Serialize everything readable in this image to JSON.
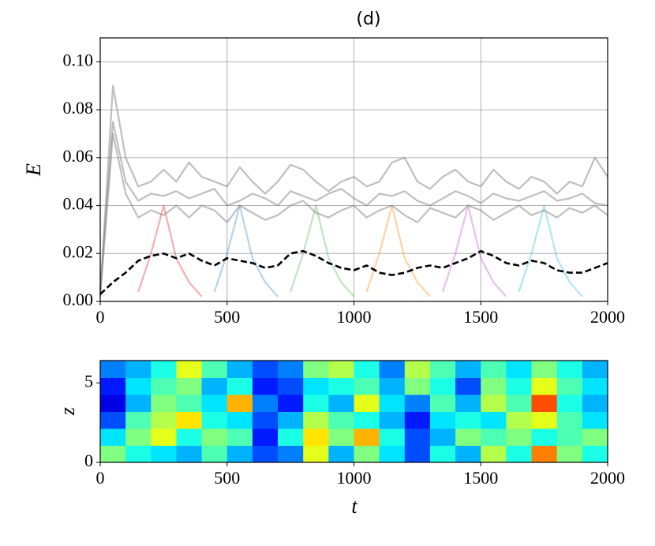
{
  "chart_data": [
    {
      "type": "line",
      "title": "(d)",
      "ylabel": "E",
      "xlim": [
        0,
        2000
      ],
      "ylim": [
        0,
        0.11
      ],
      "xticks": [
        0,
        500,
        1000,
        1500,
        2000
      ],
      "yticks": [
        {
          "value": 0,
          "label": "0.00"
        },
        {
          "value": 0.02,
          "label": "0.02"
        },
        {
          "value": 0.04,
          "label": "0.04"
        },
        {
          "value": 0.06,
          "label": "0.06"
        },
        {
          "value": 0.08,
          "label": "0.08"
        },
        {
          "value": 0.1,
          "label": "0.10"
        }
      ],
      "grid": true,
      "x": [
        0,
        50,
        100,
        150,
        200,
        250,
        300,
        350,
        400,
        450,
        500,
        550,
        600,
        650,
        700,
        750,
        800,
        850,
        900,
        950,
        1000,
        1050,
        1100,
        1150,
        1200,
        1250,
        1300,
        1350,
        1400,
        1450,
        1500,
        1550,
        1600,
        1650,
        1700,
        1750,
        1800,
        1850,
        1900,
        1950,
        2000
      ],
      "series": [
        {
          "color": "#e41a1c",
          "opacity": 0.35,
          "values": [
            null,
            null,
            null,
            0.004,
            0.02,
            0.04,
            0.018,
            0.008,
            0.002,
            null,
            null,
            null,
            null,
            null,
            null,
            null,
            null,
            null,
            null,
            null,
            null,
            null,
            null,
            null,
            null,
            null,
            null,
            null,
            null,
            null,
            null,
            null,
            null,
            null,
            null,
            null,
            null,
            null,
            null,
            null,
            null
          ]
        },
        {
          "color": "#377eb8",
          "opacity": 0.35,
          "values": [
            null,
            null,
            null,
            null,
            null,
            null,
            null,
            null,
            null,
            0.004,
            0.02,
            0.04,
            0.018,
            0.008,
            0.002,
            null,
            null,
            null,
            null,
            null,
            null,
            null,
            null,
            null,
            null,
            null,
            null,
            null,
            null,
            null,
            null,
            null,
            null,
            null,
            null,
            null,
            null,
            null,
            null,
            null,
            null
          ]
        },
        {
          "color": "#4daf4a",
          "opacity": 0.35,
          "values": [
            null,
            null,
            null,
            null,
            null,
            null,
            null,
            null,
            null,
            null,
            null,
            null,
            null,
            null,
            null,
            0.004,
            0.02,
            0.04,
            0.018,
            0.008,
            0.002,
            null,
            null,
            null,
            null,
            null,
            null,
            null,
            null,
            null,
            null,
            null,
            null,
            null,
            null,
            null,
            null,
            null,
            null,
            null,
            null
          ]
        },
        {
          "color": "#ff7f00",
          "opacity": 0.35,
          "values": [
            null,
            null,
            null,
            null,
            null,
            null,
            null,
            null,
            null,
            null,
            null,
            null,
            null,
            null,
            null,
            null,
            null,
            null,
            null,
            null,
            null,
            0.004,
            0.02,
            0.04,
            0.018,
            0.008,
            0.002,
            null,
            null,
            null,
            null,
            null,
            null,
            null,
            null,
            null,
            null,
            null,
            null,
            null,
            null
          ]
        },
        {
          "color": "#c04bd0",
          "opacity": 0.35,
          "values": [
            null,
            null,
            null,
            null,
            null,
            null,
            null,
            null,
            null,
            null,
            null,
            null,
            null,
            null,
            null,
            null,
            null,
            null,
            null,
            null,
            null,
            null,
            null,
            null,
            null,
            null,
            null,
            0.004,
            0.02,
            0.04,
            0.018,
            0.008,
            0.002,
            null,
            null,
            null,
            null,
            null,
            null,
            null,
            null
          ]
        },
        {
          "color": "#17becf",
          "opacity": 0.35,
          "values": [
            null,
            null,
            null,
            null,
            null,
            null,
            null,
            null,
            null,
            null,
            null,
            null,
            null,
            null,
            null,
            null,
            null,
            null,
            null,
            null,
            null,
            null,
            null,
            null,
            null,
            null,
            null,
            null,
            null,
            null,
            null,
            null,
            null,
            0.004,
            0.02,
            0.04,
            0.018,
            0.008,
            0.002,
            null,
            null
          ]
        },
        {
          "color": "#808080",
          "opacity": 0.5,
          "values": [
            0.005,
            0.075,
            0.05,
            0.042,
            0.045,
            0.044,
            0.046,
            0.043,
            0.045,
            0.047,
            0.04,
            0.042,
            0.045,
            0.043,
            0.04,
            0.046,
            0.044,
            0.042,
            0.045,
            0.047,
            0.043,
            0.04,
            0.045,
            0.044,
            0.046,
            0.042,
            0.04,
            0.043,
            0.046,
            0.044,
            0.041,
            0.045,
            0.043,
            0.042,
            0.044,
            0.046,
            0.042,
            0.043,
            0.045,
            0.041,
            0.04
          ]
        },
        {
          "color": "#808080",
          "opacity": 0.5,
          "values": [
            0.003,
            0.09,
            0.06,
            0.048,
            0.05,
            0.055,
            0.05,
            0.058,
            0.052,
            0.05,
            0.048,
            0.056,
            0.05,
            0.045,
            0.05,
            0.057,
            0.055,
            0.05,
            0.046,
            0.05,
            0.052,
            0.048,
            0.05,
            0.058,
            0.06,
            0.05,
            0.047,
            0.052,
            0.055,
            0.05,
            0.048,
            0.055,
            0.05,
            0.047,
            0.052,
            0.05,
            0.045,
            0.05,
            0.048,
            0.06,
            0.052
          ]
        },
        {
          "color": "#808080",
          "opacity": 0.5,
          "values": [
            0.002,
            0.07,
            0.045,
            0.035,
            0.038,
            0.036,
            0.04,
            0.035,
            0.04,
            0.038,
            0.033,
            0.04,
            0.037,
            0.034,
            0.036,
            0.04,
            0.042,
            0.037,
            0.035,
            0.038,
            0.04,
            0.035,
            0.038,
            0.04,
            0.036,
            0.033,
            0.039,
            0.037,
            0.035,
            0.04,
            0.038,
            0.034,
            0.037,
            0.04,
            0.036,
            0.038,
            0.035,
            0.039,
            0.037,
            0.04,
            0.036
          ]
        },
        {
          "color": "#000000",
          "opacity": 1,
          "dash": true,
          "values": [
            0.003,
            0.008,
            0.012,
            0.017,
            0.019,
            0.02,
            0.018,
            0.02,
            0.017,
            0.015,
            0.018,
            0.017,
            0.016,
            0.014,
            0.015,
            0.02,
            0.021,
            0.019,
            0.016,
            0.014,
            0.013,
            0.015,
            0.012,
            0.011,
            0.012,
            0.014,
            0.015,
            0.014,
            0.016,
            0.018,
            0.021,
            0.019,
            0.016,
            0.015,
            0.017,
            0.016,
            0.013,
            0.012,
            0.012,
            0.014,
            0.016
          ]
        }
      ]
    },
    {
      "type": "heatmap",
      "xlabel": "t",
      "ylabel": "z",
      "xlim": [
        0,
        2000
      ],
      "ylim": [
        0,
        6.4
      ],
      "xticks": [
        0,
        500,
        1000,
        1500,
        2000
      ],
      "yticks": [
        0,
        5
      ],
      "colormap": "jet",
      "values": [
        [
          0.5,
          0.4,
          0.35,
          0.3,
          0.45,
          0.3,
          0.2,
          0.25,
          0.6,
          0.3,
          0.5,
          0.35,
          0.2,
          0.4,
          0.3,
          0.55,
          0.4,
          0.75,
          0.5,
          0.4
        ],
        [
          0.35,
          0.5,
          0.6,
          0.4,
          0.5,
          0.45,
          0.15,
          0.4,
          0.65,
          0.5,
          0.7,
          0.4,
          0.2,
          0.3,
          0.5,
          0.45,
          0.5,
          0.4,
          0.45,
          0.5
        ],
        [
          0.2,
          0.45,
          0.55,
          0.65,
          0.4,
          0.35,
          0.2,
          0.3,
          0.55,
          0.45,
          0.4,
          0.3,
          0.15,
          0.35,
          0.4,
          0.35,
          0.55,
          0.6,
          0.45,
          0.35
        ],
        [
          0.1,
          0.3,
          0.5,
          0.45,
          0.35,
          0.7,
          0.25,
          0.15,
          0.4,
          0.3,
          0.6,
          0.35,
          0.25,
          0.45,
          0.3,
          0.55,
          0.45,
          0.8,
          0.4,
          0.3
        ],
        [
          0.15,
          0.35,
          0.45,
          0.5,
          0.3,
          0.4,
          0.15,
          0.2,
          0.35,
          0.4,
          0.45,
          0.3,
          0.5,
          0.4,
          0.2,
          0.5,
          0.4,
          0.6,
          0.45,
          0.35
        ],
        [
          0.25,
          0.3,
          0.4,
          0.6,
          0.45,
          0.3,
          0.2,
          0.25,
          0.5,
          0.55,
          0.4,
          0.25,
          0.55,
          0.45,
          0.3,
          0.45,
          0.35,
          0.5,
          0.4,
          0.3
        ]
      ]
    }
  ]
}
